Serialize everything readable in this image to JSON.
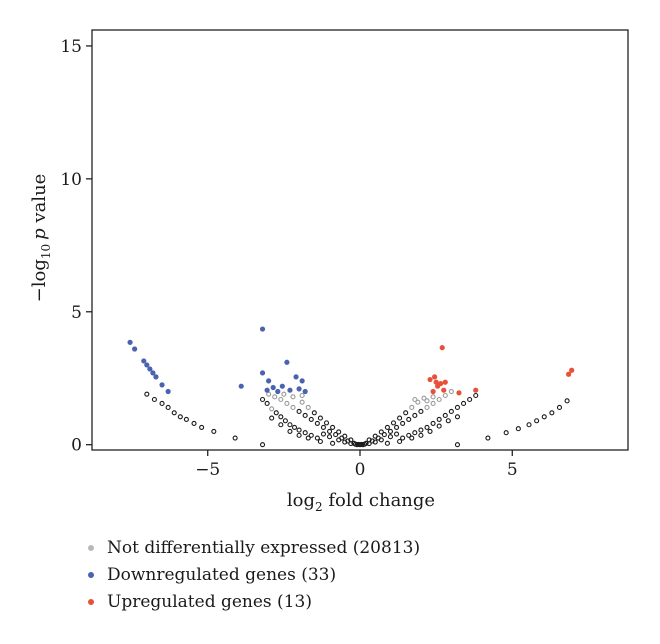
{
  "chart_data": {
    "type": "scatter",
    "title": "",
    "xlabel": {
      "base": "log",
      "sub": "2",
      "rest": " fold change"
    },
    "ylabel": {
      "pre": "−log",
      "sub": "10",
      "italic": "p",
      "rest": " value"
    },
    "xlim": [
      -8.8,
      8.8
    ],
    "ylim": [
      -0.2,
      15.6
    ],
    "xticks": [
      -5,
      0,
      5
    ],
    "xtick_labels": [
      "−5",
      "0",
      "5"
    ],
    "yticks": [
      0,
      5,
      10,
      15
    ],
    "ytick_labels": [
      "0",
      "5",
      "10",
      "15"
    ],
    "grid": false,
    "legend_position": "bottom-left",
    "colors": {
      "not_de": "#9a9a9a",
      "not_de_dark": "#1a1a1a",
      "down": "#4a63b0",
      "up": "#e8503a",
      "axis": "#222222"
    },
    "series": [
      {
        "name": "Not differentially expressed (20813)",
        "key": "not_de",
        "points": [
          [
            -7.0,
            1.9
          ],
          [
            -6.75,
            1.7
          ],
          [
            -6.5,
            1.55
          ],
          [
            -6.3,
            1.4
          ],
          [
            -6.1,
            1.2
          ],
          [
            -5.9,
            1.05
          ],
          [
            -5.7,
            0.95
          ],
          [
            -5.45,
            0.8
          ],
          [
            -5.2,
            0.65
          ],
          [
            -4.8,
            0.5
          ],
          [
            -4.1,
            0.25
          ],
          [
            -3.2,
            0.0
          ],
          [
            3.2,
            0.0
          ],
          [
            4.2,
            0.25
          ],
          [
            4.8,
            0.45
          ],
          [
            5.2,
            0.6
          ],
          [
            5.55,
            0.75
          ],
          [
            5.8,
            0.9
          ],
          [
            6.05,
            1.05
          ],
          [
            6.3,
            1.2
          ],
          [
            6.55,
            1.4
          ],
          [
            6.8,
            1.65
          ],
          [
            -3.2,
            1.7
          ],
          [
            -3.05,
            1.55
          ],
          [
            -2.9,
            1.35
          ],
          [
            -2.75,
            1.2
          ],
          [
            -2.6,
            1.05
          ],
          [
            -2.45,
            0.9
          ],
          [
            -2.3,
            0.75
          ],
          [
            -2.15,
            0.65
          ],
          [
            -2.0,
            0.55
          ],
          [
            -1.8,
            0.45
          ],
          [
            -1.6,
            0.35
          ],
          [
            -1.4,
            0.25
          ],
          [
            -3.0,
            1.9
          ],
          [
            -2.8,
            1.8
          ],
          [
            -2.6,
            1.7
          ],
          [
            -2.4,
            1.55
          ],
          [
            -2.2,
            1.4
          ],
          [
            -2.0,
            1.25
          ],
          [
            -1.8,
            1.1
          ],
          [
            -1.6,
            0.95
          ],
          [
            -1.4,
            0.8
          ],
          [
            -1.2,
            0.65
          ],
          [
            -1.0,
            0.5
          ],
          [
            -0.8,
            0.38
          ],
          [
            -0.6,
            0.25
          ],
          [
            -0.4,
            0.14
          ],
          [
            -0.2,
            0.05
          ],
          [
            -2.9,
            1.0
          ],
          [
            -2.6,
            0.75
          ],
          [
            -2.3,
            0.5
          ],
          [
            -2.0,
            0.35
          ],
          [
            -1.7,
            0.25
          ],
          [
            -1.3,
            0.12
          ],
          [
            -0.9,
            0.05
          ],
          [
            -1.9,
            1.6
          ],
          [
            -1.7,
            1.4
          ],
          [
            -1.5,
            1.2
          ],
          [
            -1.3,
            1.0
          ],
          [
            -1.1,
            0.82
          ],
          [
            -0.9,
            0.65
          ],
          [
            -0.7,
            0.48
          ],
          [
            -0.5,
            0.32
          ],
          [
            -0.3,
            0.18
          ],
          [
            -1.2,
            0.4
          ],
          [
            -1.0,
            0.3
          ],
          [
            -0.7,
            0.18
          ],
          [
            -0.5,
            0.1
          ],
          [
            -0.3,
            0.04
          ],
          [
            0.2,
            0.05
          ],
          [
            0.4,
            0.14
          ],
          [
            0.6,
            0.25
          ],
          [
            0.8,
            0.38
          ],
          [
            1.0,
            0.5
          ],
          [
            1.2,
            0.65
          ],
          [
            1.4,
            0.8
          ],
          [
            1.6,
            0.95
          ],
          [
            1.8,
            1.1
          ],
          [
            2.0,
            1.25
          ],
          [
            2.2,
            1.4
          ],
          [
            2.4,
            1.55
          ],
          [
            2.6,
            1.7
          ],
          [
            2.8,
            1.85
          ],
          [
            3.0,
            2.0
          ],
          [
            0.3,
            0.18
          ],
          [
            0.5,
            0.32
          ],
          [
            0.7,
            0.48
          ],
          [
            0.9,
            0.65
          ],
          [
            1.1,
            0.82
          ],
          [
            1.3,
            1.0
          ],
          [
            1.5,
            1.2
          ],
          [
            1.7,
            1.4
          ],
          [
            1.9,
            1.6
          ],
          [
            2.1,
            1.75
          ],
          [
            1.4,
            0.25
          ],
          [
            1.6,
            0.35
          ],
          [
            1.8,
            0.45
          ],
          [
            2.0,
            0.55
          ],
          [
            2.2,
            0.65
          ],
          [
            2.4,
            0.8
          ],
          [
            2.6,
            0.95
          ],
          [
            2.8,
            1.1
          ],
          [
            3.0,
            1.25
          ],
          [
            3.2,
            1.4
          ],
          [
            3.4,
            1.55
          ],
          [
            3.6,
            1.7
          ],
          [
            3.8,
            1.85
          ],
          [
            0.9,
            0.05
          ],
          [
            1.3,
            0.12
          ],
          [
            1.7,
            0.25
          ],
          [
            2.0,
            0.35
          ],
          [
            2.3,
            0.5
          ],
          [
            2.6,
            0.7
          ],
          [
            2.9,
            0.9
          ],
          [
            3.2,
            1.05
          ],
          [
            0.3,
            0.04
          ],
          [
            0.5,
            0.1
          ],
          [
            0.7,
            0.18
          ],
          [
            1.0,
            0.3
          ],
          [
            1.2,
            0.4
          ],
          [
            -0.15,
            0.02
          ],
          [
            0.0,
            0.0
          ],
          [
            0.15,
            0.02
          ],
          [
            -0.1,
            0.0
          ],
          [
            0.1,
            0.0
          ],
          [
            -0.05,
            0.01
          ],
          [
            0.05,
            0.01
          ],
          [
            2.2,
            1.65
          ],
          [
            2.4,
            1.8
          ],
          [
            1.8,
            1.7
          ],
          [
            -2.2,
            1.8
          ],
          [
            -2.5,
            1.9
          ],
          [
            -1.9,
            1.85
          ]
        ]
      },
      {
        "name": "Downregulated genes (33)",
        "key": "down",
        "points": [
          [
            -7.55,
            3.85
          ],
          [
            -7.4,
            3.6
          ],
          [
            -7.1,
            3.15
          ],
          [
            -7.0,
            3.0
          ],
          [
            -6.9,
            2.85
          ],
          [
            -6.8,
            2.7
          ],
          [
            -6.7,
            2.55
          ],
          [
            -6.5,
            2.25
          ],
          [
            -6.3,
            2.0
          ],
          [
            -3.9,
            2.2
          ],
          [
            -3.2,
            4.35
          ],
          [
            -3.2,
            2.7
          ],
          [
            -3.0,
            2.4
          ],
          [
            -2.85,
            2.15
          ],
          [
            -2.7,
            2.0
          ],
          [
            -2.55,
            2.2
          ],
          [
            -2.4,
            3.1
          ],
          [
            -2.3,
            2.05
          ],
          [
            -2.1,
            2.55
          ],
          [
            -2.0,
            2.1
          ],
          [
            -1.9,
            2.4
          ],
          [
            -1.8,
            2.0
          ],
          [
            -3.05,
            2.05
          ]
        ]
      },
      {
        "name": "Upregulated genes (13)",
        "key": "up",
        "points": [
          [
            2.7,
            3.65
          ],
          [
            2.45,
            2.55
          ],
          [
            2.5,
            2.35
          ],
          [
            2.55,
            2.2
          ],
          [
            2.65,
            2.3
          ],
          [
            2.8,
            2.35
          ],
          [
            2.75,
            2.05
          ],
          [
            2.4,
            2.0
          ],
          [
            2.3,
            2.45
          ],
          [
            3.25,
            1.95
          ],
          [
            3.8,
            2.05
          ],
          [
            6.85,
            2.65
          ],
          [
            6.95,
            2.8
          ]
        ]
      }
    ]
  }
}
